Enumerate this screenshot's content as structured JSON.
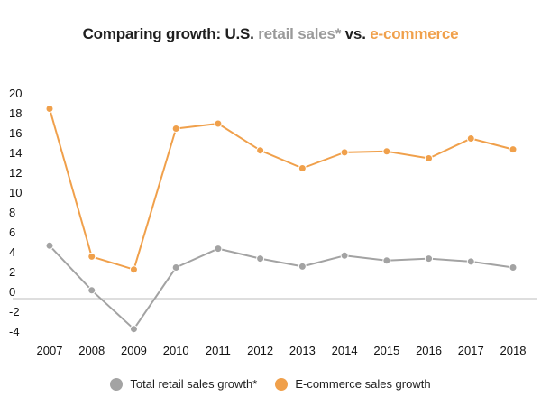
{
  "title": {
    "prefix": "Comparing growth: U.S. ",
    "retail": "retail sales*",
    "middle": " vs. ",
    "ecom": "e-commerce"
  },
  "colors": {
    "retail": "#a3a3a3",
    "ecommerce": "#f0a04b",
    "axis": "#bdbdbd"
  },
  "chart_data": {
    "type": "line",
    "title": "Comparing growth: U.S. retail sales* vs. e-commerce",
    "x": [
      2007,
      2008,
      2009,
      2010,
      2011,
      2012,
      2013,
      2014,
      2015,
      2016,
      2017,
      2018
    ],
    "ylim": [
      -4,
      20
    ],
    "yticks": [
      -4,
      -2,
      0,
      2,
      4,
      6,
      8,
      10,
      12,
      14,
      16,
      18,
      20
    ],
    "grid": false,
    "legend_position": "bottom",
    "series": [
      {
        "name": "Total retail sales growth*",
        "color": "#a3a3a3",
        "values": [
          4.7,
          0.2,
          -3.7,
          2.5,
          4.4,
          3.4,
          2.6,
          3.7,
          3.2,
          3.4,
          3.1,
          2.5
        ]
      },
      {
        "name": "E-commerce sales growth",
        "color": "#f0a04b",
        "values": [
          18.5,
          3.6,
          2.3,
          16.5,
          17.0,
          14.3,
          12.5,
          14.1,
          14.2,
          13.5,
          15.5,
          14.4
        ]
      }
    ]
  }
}
